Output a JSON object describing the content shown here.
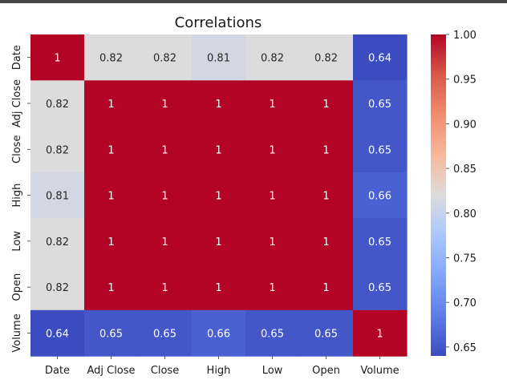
{
  "chart_data": {
    "type": "heatmap",
    "title": "Correlations",
    "x_labels": [
      "Date",
      "Adj Close",
      "Close",
      "High",
      "Low",
      "Open",
      "Volume"
    ],
    "y_labels": [
      "Date",
      "Adj Close",
      "Close",
      "High",
      "Low",
      "Open",
      "Volume"
    ],
    "values": [
      [
        1.0,
        0.82,
        0.82,
        0.81,
        0.82,
        0.82,
        0.64
      ],
      [
        0.82,
        1.0,
        1.0,
        1.0,
        1.0,
        1.0,
        0.65
      ],
      [
        0.82,
        1.0,
        1.0,
        1.0,
        1.0,
        1.0,
        0.65
      ],
      [
        0.81,
        1.0,
        1.0,
        1.0,
        1.0,
        1.0,
        0.66
      ],
      [
        0.82,
        1.0,
        1.0,
        1.0,
        1.0,
        1.0,
        0.65
      ],
      [
        0.82,
        1.0,
        1.0,
        1.0,
        1.0,
        1.0,
        0.65
      ],
      [
        0.64,
        0.65,
        0.65,
        0.66,
        0.65,
        0.65,
        1.0
      ]
    ],
    "annotations": [
      [
        "1",
        "0.82",
        "0.82",
        "0.81",
        "0.82",
        "0.82",
        "0.64"
      ],
      [
        "0.82",
        "1",
        "1",
        "1",
        "1",
        "1",
        "0.65"
      ],
      [
        "0.82",
        "1",
        "1",
        "1",
        "1",
        "1",
        "0.65"
      ],
      [
        "0.81",
        "1",
        "1",
        "1",
        "1",
        "1",
        "0.66"
      ],
      [
        "0.82",
        "1",
        "1",
        "1",
        "1",
        "1",
        "0.65"
      ],
      [
        "0.82",
        "1",
        "1",
        "1",
        "1",
        "1",
        "0.65"
      ],
      [
        "0.64",
        "0.65",
        "0.65",
        "0.66",
        "0.65",
        "0.65",
        "1"
      ]
    ],
    "colormap": "coolwarm",
    "colorbar": {
      "range": [
        0.64,
        1.0
      ],
      "ticks": [
        "1.00",
        "0.95",
        "0.90",
        "0.85",
        "0.80",
        "0.75",
        "0.70",
        "0.65"
      ]
    }
  }
}
